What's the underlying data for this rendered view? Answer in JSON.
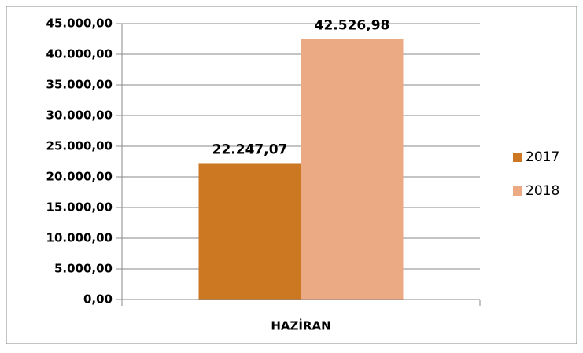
{
  "chart_data": {
    "type": "bar",
    "categories": [
      "HAZİRAN"
    ],
    "series": [
      {
        "name": "2017",
        "color": "#cc7722",
        "values": [
          22247.07
        ],
        "value_labels": [
          "22.247,07"
        ]
      },
      {
        "name": "2018",
        "color": "#ebaa84",
        "values": [
          42526.98
        ],
        "value_labels": [
          "42.526,98"
        ]
      }
    ],
    "ylim": [
      0,
      45000
    ],
    "yticks": [
      {
        "value": 0,
        "label": "0,00"
      },
      {
        "value": 5000,
        "label": "5.000,00"
      },
      {
        "value": 10000,
        "label": "10.000,00"
      },
      {
        "value": 15000,
        "label": "15.000,00"
      },
      {
        "value": 20000,
        "label": "20.000,00"
      },
      {
        "value": 25000,
        "label": "25.000,00"
      },
      {
        "value": 30000,
        "label": "30.000,00"
      },
      {
        "value": 35000,
        "label": "35.000,00"
      },
      {
        "value": 40000,
        "label": "40.000,00"
      },
      {
        "value": 45000,
        "label": "45.000,00"
      }
    ],
    "grid": true,
    "legend": "right"
  }
}
